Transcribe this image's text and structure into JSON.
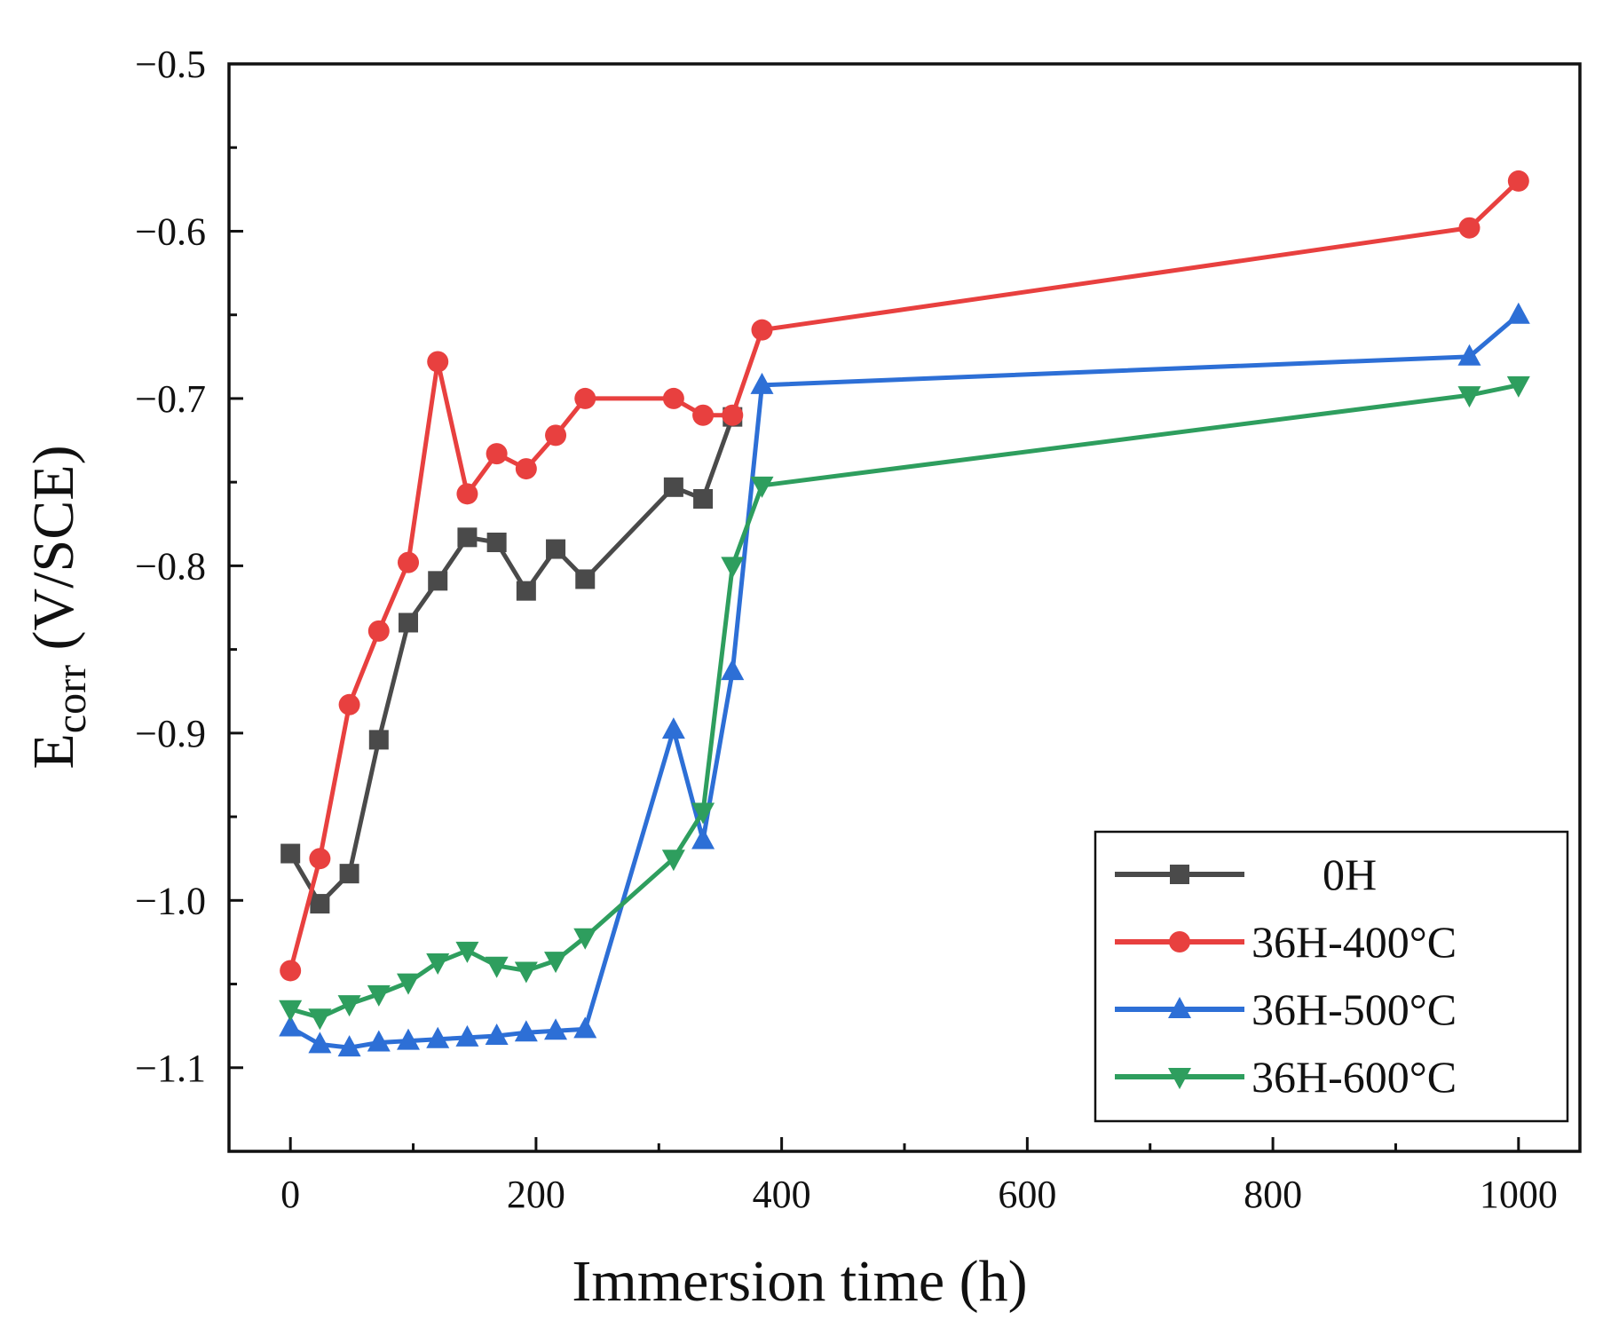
{
  "chart_data": {
    "type": "line",
    "title": "",
    "xlabel": "Immersion time (h)",
    "ylabel": {
      "main": "E",
      "sub": "corr",
      "unit": " (V/SCE)"
    },
    "xlim": [
      -50,
      1050
    ],
    "ylim": [
      -1.15,
      -0.5
    ],
    "xticks": [
      0,
      200,
      400,
      600,
      800,
      1000
    ],
    "xtick_labels": [
      "0",
      "200",
      "400",
      "600",
      "800",
      "1000"
    ],
    "yticks": [
      -0.5,
      -0.6,
      -0.7,
      -0.8,
      -0.9,
      -1.0,
      -1.1
    ],
    "ytick_labels": [
      "−0.5",
      "−0.6",
      "−0.7",
      "−0.8",
      "−0.9",
      "−1.0",
      "−1.1"
    ],
    "grid": false,
    "legend_position": "bottom-right",
    "series": [
      {
        "name": "0H",
        "color": "#4a4a4a",
        "marker": "square",
        "x": [
          0,
          24,
          48,
          72,
          96,
          120,
          144,
          168,
          192,
          216,
          240,
          312,
          336,
          360
        ],
        "y": [
          -0.972,
          -1.002,
          -0.984,
          -0.904,
          -0.834,
          -0.809,
          -0.783,
          -0.786,
          -0.815,
          -0.79,
          -0.808,
          -0.753,
          -0.76,
          -0.711
        ]
      },
      {
        "name": "36H-400°C",
        "color": "#e8403f",
        "marker": "circle",
        "x": [
          0,
          24,
          48,
          72,
          96,
          120,
          144,
          168,
          192,
          216,
          240,
          312,
          336,
          360,
          384,
          960,
          1000
        ],
        "y": [
          -1.042,
          -0.975,
          -0.883,
          -0.839,
          -0.798,
          -0.678,
          -0.757,
          -0.733,
          -0.742,
          -0.722,
          -0.7,
          -0.7,
          -0.71,
          -0.71,
          -0.659,
          -0.598,
          -0.57
        ]
      },
      {
        "name": "36H-500°C",
        "color": "#2d6fd6",
        "marker": "triangle-up",
        "x": [
          0,
          24,
          48,
          72,
          96,
          120,
          144,
          168,
          192,
          216,
          240,
          312,
          336,
          360,
          384,
          960,
          1000
        ],
        "y": [
          -1.076,
          -1.086,
          -1.088,
          -1.085,
          -1.084,
          -1.083,
          -1.082,
          -1.081,
          -1.079,
          -1.078,
          -1.077,
          -0.898,
          -0.964,
          -0.863,
          -0.692,
          -0.675,
          -0.65
        ]
      },
      {
        "name": "36H-600°C",
        "color": "#2e9e5e",
        "marker": "triangle-down",
        "x": [
          0,
          24,
          48,
          72,
          96,
          120,
          144,
          168,
          192,
          216,
          240,
          312,
          336,
          360,
          384,
          960,
          1000
        ],
        "y": [
          -1.065,
          -1.07,
          -1.062,
          -1.056,
          -1.049,
          -1.037,
          -1.03,
          -1.039,
          -1.042,
          -1.036,
          -1.022,
          -0.975,
          -0.947,
          -0.8,
          -0.752,
          -0.698,
          -0.692
        ]
      }
    ]
  }
}
